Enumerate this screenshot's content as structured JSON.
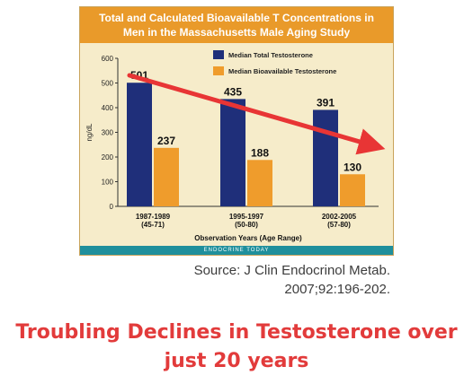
{
  "headline": "Troubling Declines in Testosterone over\njust 20 years",
  "source_text": "Source: J Clin Endocrinol Metab.\n2007;92:196-202.",
  "colors": {
    "header_bg": "#e99a2a",
    "panel_bg": "#f6ecca",
    "total_bar": "#1f2f7a",
    "bioavailable_bar": "#ef9c2c",
    "arrow": "#e83535",
    "footer_bg": "#1f8f9c",
    "headline": "#e23b3b"
  },
  "chart_data": {
    "type": "bar",
    "title": "Total and Calculated Bioavailable T Concentrations in\nMen in the Massachusetts Male Aging Study",
    "footer": "ENDOCRINE TODAY",
    "xlabel": "Observation Years (Age Range)",
    "ylabel": "ng/dL",
    "ylim": [
      0,
      600
    ],
    "yticks": [
      0,
      100,
      200,
      300,
      400,
      500,
      600
    ],
    "categories": [
      {
        "years": "1987-1989",
        "ages": "(45-71)"
      },
      {
        "years": "1995-1997",
        "ages": "(50-80)"
      },
      {
        "years": "2002-2005",
        "ages": "(57-80)"
      }
    ],
    "series": [
      {
        "name": "Median Total Testosterone",
        "values": [
          501,
          435,
          391
        ]
      },
      {
        "name": "Median Bioavailable Testosterone",
        "values": [
          237,
          188,
          130
        ]
      }
    ],
    "legend_position": "top-right",
    "annotation": "downward trend arrow"
  }
}
